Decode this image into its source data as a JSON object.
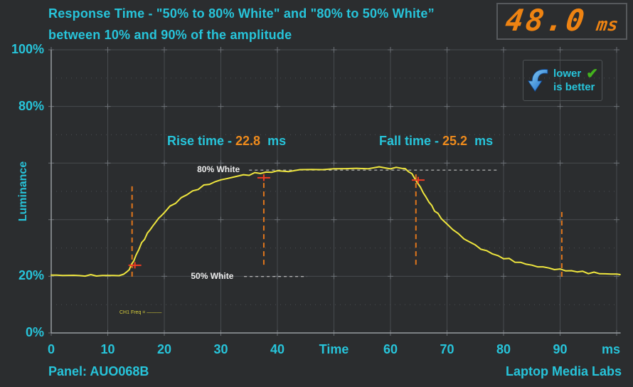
{
  "header": {
    "title_line1": "Response Time - \"50% to 80% White\" and \"80% to 50% White”",
    "title_line2": "between 10% and 90% of the amplitude",
    "result_value": "48.0",
    "result_unit": "ms"
  },
  "badge": {
    "arrow_icon": "blue-down-arrow",
    "check_icon": "green-check",
    "check_glyph": "✔",
    "line1": "lower",
    "line2": "is better"
  },
  "colors": {
    "background": "#2b2d2f",
    "accent_cyan": "#27c4da",
    "accent_orange": "#ef8b1c",
    "curve_yellow": "#efe63e",
    "grid": "#474b4f",
    "axis": "#989ca0",
    "dashed_orange": "#e0761c",
    "marker_red": "#ef3b22",
    "level_white": "#e8e8e8",
    "check_green": "#43b31c",
    "arrow_blue": "#1464c8"
  },
  "chart_data": {
    "type": "line",
    "title": "Response Time - 50% to 80% White and back, 10%-90% amplitude",
    "ylabel": "Luminance",
    "xlim": [
      0,
      100.7
    ],
    "ylim": [
      0,
      100
    ],
    "grid": true,
    "x_ticks": [
      {
        "label": "0",
        "u": 0
      },
      {
        "label": "10",
        "u": 10
      },
      {
        "label": "20",
        "u": 20
      },
      {
        "label": "30",
        "u": 30
      },
      {
        "label": "40",
        "u": 40
      },
      {
        "label": "Time",
        "u": 50
      },
      {
        "label": "60",
        "u": 60
      },
      {
        "label": "70",
        "u": 70
      },
      {
        "label": "80",
        "u": 80
      },
      {
        "label": "90",
        "u": 90
      },
      {
        "label": "ms",
        "u": 99
      }
    ],
    "y_ticks": [
      {
        "label": "100%",
        "value": 100
      },
      {
        "label": "80%",
        "value": 80
      },
      {
        "label": "20%",
        "value": 20
      },
      {
        "label": "0%",
        "value": 0
      }
    ],
    "series": [
      {
        "name": "luminance-response",
        "color": "#efe63e",
        "points": [
          [
            0,
            20.4
          ],
          [
            1,
            20.2
          ],
          [
            2,
            20.5
          ],
          [
            3,
            20.2
          ],
          [
            4,
            20.4
          ],
          [
            5,
            20.1
          ],
          [
            6,
            20.4
          ],
          [
            7,
            20.2
          ],
          [
            8,
            20.4
          ],
          [
            9,
            20.2
          ],
          [
            10,
            20.3
          ],
          [
            11,
            20.2
          ],
          [
            12,
            20.4
          ],
          [
            12.8,
            20.6
          ],
          [
            13.3,
            21.4
          ],
          [
            13.8,
            22.6
          ],
          [
            14.2,
            24.0
          ],
          [
            14.6,
            25.6
          ],
          [
            15,
            27.4
          ],
          [
            15.5,
            29.6
          ],
          [
            16,
            31.6
          ],
          [
            16.5,
            33.4
          ],
          [
            17,
            35.0
          ],
          [
            17.5,
            36.5
          ],
          [
            18,
            37.9
          ],
          [
            18.5,
            39.2
          ],
          [
            19,
            40.4
          ],
          [
            19.5,
            41.5
          ],
          [
            20,
            42.6
          ],
          [
            21,
            44.5
          ],
          [
            22,
            46.1
          ],
          [
            23,
            47.6
          ],
          [
            24,
            48.9
          ],
          [
            25,
            50.0
          ],
          [
            26,
            51.0
          ],
          [
            27,
            51.9
          ],
          [
            28,
            52.7
          ],
          [
            29,
            53.4
          ],
          [
            30,
            54.0
          ],
          [
            31,
            54.5
          ],
          [
            32,
            55.0
          ],
          [
            33,
            55.4
          ],
          [
            34,
            55.7
          ],
          [
            35,
            56.0
          ],
          [
            36,
            56.3
          ],
          [
            37,
            56.5
          ],
          [
            38,
            56.7
          ],
          [
            39,
            56.9
          ],
          [
            40,
            57.0
          ],
          [
            42,
            57.3
          ],
          [
            44,
            57.5
          ],
          [
            46,
            57.7
          ],
          [
            48,
            57.8
          ],
          [
            50,
            57.9
          ],
          [
            52,
            58.0
          ],
          [
            54,
            58.1
          ],
          [
            56,
            58.2
          ],
          [
            58,
            58.3
          ],
          [
            60,
            58.3
          ],
          [
            61,
            58.3
          ],
          [
            62,
            58.2
          ],
          [
            62.6,
            57.9
          ],
          [
            63.2,
            57.2
          ],
          [
            63.8,
            56.0
          ],
          [
            64.3,
            54.6
          ],
          [
            64.8,
            53.0
          ],
          [
            65.3,
            51.3
          ],
          [
            65.8,
            49.6
          ],
          [
            66.3,
            47.9
          ],
          [
            66.8,
            46.3
          ],
          [
            67.3,
            44.8
          ],
          [
            67.8,
            43.4
          ],
          [
            68.4,
            41.9
          ],
          [
            69,
            40.5
          ],
          [
            70,
            38.4
          ],
          [
            71,
            36.6
          ],
          [
            72,
            34.9
          ],
          [
            73,
            33.4
          ],
          [
            74,
            32.1
          ],
          [
            75,
            30.9
          ],
          [
            76,
            29.8
          ],
          [
            77,
            28.9
          ],
          [
            78,
            28.0
          ],
          [
            79,
            27.2
          ],
          [
            80,
            26.5
          ],
          [
            81,
            25.9
          ],
          [
            82,
            25.3
          ],
          [
            83,
            24.8
          ],
          [
            84,
            24.3
          ],
          [
            85,
            23.9
          ],
          [
            86,
            23.5
          ],
          [
            87,
            23.2
          ],
          [
            88,
            22.9
          ],
          [
            89,
            22.6
          ],
          [
            90,
            22.3
          ],
          [
            91,
            22.1
          ],
          [
            92,
            21.9
          ],
          [
            93,
            21.7
          ],
          [
            94,
            21.5
          ],
          [
            95,
            21.3
          ],
          [
            96,
            21.2
          ],
          [
            97,
            21.0
          ],
          [
            98,
            20.9
          ],
          [
            99,
            20.8
          ],
          [
            100,
            20.7
          ],
          [
            100.6,
            20.7
          ]
        ]
      }
    ],
    "annotations": {
      "rise": {
        "prefix": "Rise time - ",
        "value": "22.8",
        "suffix": "  ms"
      },
      "fall": {
        "prefix": "Fall time - ",
        "value": "25.2",
        "suffix": "  ms"
      },
      "level_high": {
        "label": "80% White",
        "y": 57.5,
        "x_from": 35.0,
        "x_to": 79.2,
        "label_x": 25.8
      },
      "level_low": {
        "label": "50% White",
        "y": 19.9,
        "x_from": 34.1,
        "x_to": 45.2,
        "label_x": 24.7
      },
      "vlines": [
        {
          "x": 14.3,
          "y_from": 19.1,
          "y_to": 51.8
        },
        {
          "x": 37.6,
          "y_from": 24.1,
          "y_to": 56.0
        },
        {
          "x": 64.5,
          "y_from": 24.1,
          "y_to": 56.0
        },
        {
          "x": 90.3,
          "y_from": 18.8,
          "y_to": 42.7
        }
      ],
      "crosses": [
        {
          "x": 14.8,
          "y": 23.9
        },
        {
          "x": 37.6,
          "y": 54.8
        },
        {
          "x": 64.9,
          "y": 54.0
        }
      ],
      "scope_text": "CH1 Freq = ———"
    }
  },
  "footer": {
    "left": "Panel: AUO068B",
    "right": "Laptop Media Labs"
  }
}
